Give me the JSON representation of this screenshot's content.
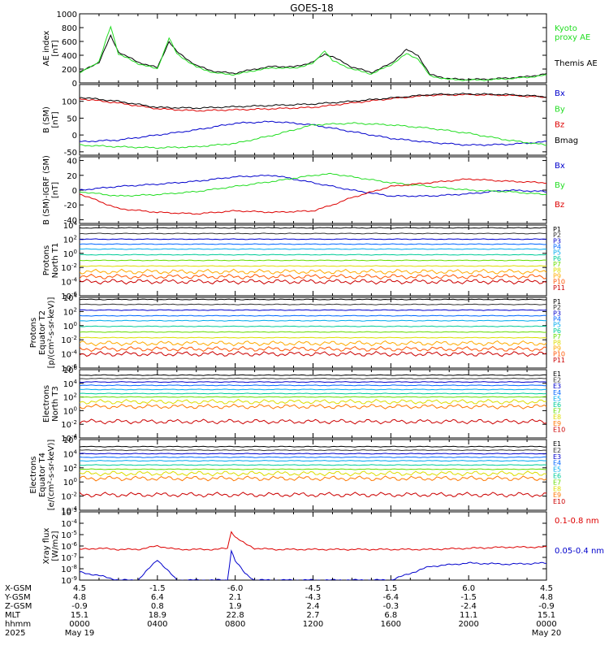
{
  "title": "GOES-18",
  "colors": {
    "black": "#000000",
    "green": "#22dd22",
    "blue": "#0000cc",
    "red": "#dd0000"
  },
  "chart_data": [
    {
      "type": "line",
      "ylabel": [
        "AE index",
        "[nT]"
      ],
      "yticks": [
        "0",
        "200",
        "400",
        "600",
        "800",
        "1000"
      ],
      "ylim": [
        0,
        1000
      ],
      "legend": [
        {
          "name": "Kyoto",
          "color": "#22dd22"
        },
        {
          "name": "proxy AE",
          "color": "#22dd22"
        },
        {
          "name": "Themis AE",
          "color": "#000000"
        }
      ],
      "x_hours": [
        0,
        1,
        1.6,
        2,
        3,
        4,
        4.6,
        5,
        6,
        7,
        8,
        9,
        10,
        11,
        12,
        12.6,
        13,
        14,
        15,
        16,
        16.8,
        17.4,
        18,
        19,
        20,
        21,
        22,
        23,
        24
      ],
      "series": [
        {
          "name": "Themis AE",
          "color": "#000000",
          "values": [
            150,
            300,
            680,
            450,
            300,
            220,
            600,
            450,
            250,
            160,
            140,
            200,
            240,
            230,
            300,
            420,
            380,
            230,
            150,
            280,
            480,
            400,
            120,
            60,
            50,
            55,
            70,
            90,
            130
          ]
        },
        {
          "name": "Kyoto",
          "color": "#22dd22",
          "values": [
            140,
            310,
            820,
            420,
            280,
            200,
            650,
            420,
            230,
            140,
            120,
            180,
            220,
            210,
            280,
            470,
            320,
            200,
            130,
            260,
            420,
            350,
            100,
            50,
            40,
            45,
            60,
            80,
            110
          ]
        }
      ]
    },
    {
      "type": "line",
      "ylabel": [
        "B (SM)",
        "[nT]"
      ],
      "yticks": [
        "-50",
        "0",
        "50",
        "100"
      ],
      "ylim": [
        -60,
        150
      ],
      "legend": [
        {
          "name": "Bx",
          "color": "#0000cc"
        },
        {
          "name": "By",
          "color": "#22dd22"
        },
        {
          "name": "Bz",
          "color": "#dd0000"
        },
        {
          "name": "Bmag",
          "color": "#000000"
        }
      ],
      "x_hours": [
        0,
        2,
        4,
        6,
        8,
        10,
        12,
        14,
        16,
        18,
        20,
        22,
        24
      ],
      "series": [
        {
          "name": "Bx",
          "color": "#0000cc",
          "values": [
            -20,
            -15,
            0,
            15,
            35,
            40,
            30,
            10,
            -10,
            -22,
            -30,
            -28,
            -20
          ]
        },
        {
          "name": "By",
          "color": "#22dd22",
          "values": [
            -30,
            -35,
            -38,
            -35,
            -25,
            0,
            30,
            35,
            30,
            20,
            5,
            -15,
            -30
          ]
        },
        {
          "name": "Bz",
          "color": "#dd0000",
          "values": [
            108,
            95,
            78,
            72,
            75,
            78,
            82,
            95,
            108,
            118,
            120,
            118,
            112
          ]
        },
        {
          "name": "Bmag",
          "color": "#000000",
          "values": [
            112,
            100,
            82,
            80,
            84,
            88,
            92,
            100,
            110,
            120,
            122,
            120,
            114
          ]
        }
      ]
    },
    {
      "type": "line",
      "ylabel": [
        "B (SM)-IGRF (SM)",
        "[nT]"
      ],
      "yticks": [
        "-40",
        "-20",
        "0",
        "20",
        "40"
      ],
      "ylim": [
        -45,
        45
      ],
      "legend": [
        {
          "name": "Bx",
          "color": "#0000cc"
        },
        {
          "name": "By",
          "color": "#22dd22"
        },
        {
          "name": "Bz",
          "color": "#dd0000"
        }
      ],
      "x_hours": [
        0,
        2,
        4,
        6,
        8,
        10,
        12,
        13,
        14,
        16,
        18,
        20,
        22,
        24
      ],
      "series": [
        {
          "name": "Bx",
          "color": "#0000cc",
          "values": [
            0,
            5,
            8,
            12,
            18,
            20,
            10,
            5,
            0,
            -8,
            -8,
            -5,
            0,
            -2
          ]
        },
        {
          "name": "By",
          "color": "#22dd22",
          "values": [
            -2,
            -8,
            -6,
            -2,
            5,
            12,
            20,
            22,
            18,
            10,
            5,
            0,
            -2,
            -6
          ]
        },
        {
          "name": "Bz",
          "color": "#dd0000",
          "values": [
            -5,
            -25,
            -30,
            -32,
            -28,
            -30,
            -28,
            -20,
            -10,
            5,
            10,
            15,
            12,
            10
          ]
        }
      ]
    },
    {
      "type": "line",
      "log": true,
      "ylabel": [
        "Protons",
        "North T1"
      ],
      "yticks": [
        "10^4",
        "10^2",
        "10^0",
        "10^-2",
        "10^-4",
        "10^-6"
      ],
      "ylim_exp": [
        -6,
        4
      ],
      "channels": [
        {
          "name": "P1",
          "color": "#000000",
          "level": 3.6
        },
        {
          "name": "P2",
          "color": "#333333",
          "level": 2.8
        },
        {
          "name": "P3",
          "color": "#0000cc",
          "level": 2.0
        },
        {
          "name": "P4",
          "color": "#0066ff",
          "level": 1.3
        },
        {
          "name": "P5",
          "color": "#00aaee",
          "level": 0.6
        },
        {
          "name": "P6",
          "color": "#00cc99",
          "level": -0.2
        },
        {
          "name": "P7",
          "color": "#66dd00",
          "level": -1.0
        },
        {
          "name": "P8",
          "color": "#dddd00",
          "level": -1.8
        },
        {
          "name": "P9",
          "color": "#ffaa00",
          "level": -2.6
        },
        {
          "name": "P10",
          "color": "#ff5500",
          "level": -3.3
        },
        {
          "name": "P11",
          "color": "#cc0000",
          "level": -4.0
        }
      ]
    },
    {
      "type": "line",
      "log": true,
      "ylabel": [
        "Protons",
        "Equator T2",
        "[p/(cm²-s-sr-keV)]"
      ],
      "yticks": [
        "10^4",
        "10^2",
        "10^0",
        "10^-2",
        "10^-4",
        "10^-6"
      ],
      "ylim_exp": [
        -6,
        4
      ],
      "channels": [
        {
          "name": "P1",
          "color": "#000000",
          "level": 3.7
        },
        {
          "name": "P2",
          "color": "#333333",
          "level": 3.0
        },
        {
          "name": "P3",
          "color": "#0000cc",
          "level": 2.2
        },
        {
          "name": "P4",
          "color": "#0066ff",
          "level": 1.4
        },
        {
          "name": "P5",
          "color": "#00aaee",
          "level": 0.7
        },
        {
          "name": "P6",
          "color": "#00cc99",
          "level": -0.1
        },
        {
          "name": "P7",
          "color": "#66dd00",
          "level": -0.9
        },
        {
          "name": "P8",
          "color": "#dddd00",
          "level": -1.7
        },
        {
          "name": "P9",
          "color": "#ffaa00",
          "level": -2.5
        },
        {
          "name": "P10",
          "color": "#ff5500",
          "level": -3.3
        },
        {
          "name": "P11",
          "color": "#cc0000",
          "level": -4.0
        }
      ]
    },
    {
      "type": "line",
      "log": true,
      "ylabel": [
        "Electrons",
        "North T3"
      ],
      "yticks": [
        "10^6",
        "10^4",
        "10^2",
        "10^0",
        "10^-2",
        "10^-4"
      ],
      "ylim_exp": [
        -4,
        6
      ],
      "channels": [
        {
          "name": "E1",
          "color": "#000000",
          "level": 5.2
        },
        {
          "name": "E2",
          "color": "#333333",
          "level": 4.7
        },
        {
          "name": "E3",
          "color": "#0000cc",
          "level": 4.2
        },
        {
          "name": "E4",
          "color": "#0066ff",
          "level": 3.7
        },
        {
          "name": "E5",
          "color": "#00aaee",
          "level": 3.1
        },
        {
          "name": "E6",
          "color": "#00cc99",
          "level": 2.5
        },
        {
          "name": "E7",
          "color": "#66dd00",
          "level": 2.0
        },
        {
          "name": "E8",
          "color": "#dddd00",
          "level": 1.3
        },
        {
          "name": "E9",
          "color": "#ff7700",
          "level": 0.6
        },
        {
          "name": "E10",
          "color": "#cc0000",
          "level": -1.6
        }
      ]
    },
    {
      "type": "line",
      "log": true,
      "ylabel": [
        "Electrons",
        "Equator T4",
        "[e/(cm²-s-sr-keV)]"
      ],
      "yticks": [
        "10^6",
        "10^4",
        "10^2",
        "10^0",
        "10^-2",
        "10^-4"
      ],
      "ylim_exp": [
        -4,
        6
      ],
      "channels": [
        {
          "name": "E1",
          "color": "#000000",
          "level": 5.0
        },
        {
          "name": "E2",
          "color": "#333333",
          "level": 4.5
        },
        {
          "name": "E3",
          "color": "#0000cc",
          "level": 4.0
        },
        {
          "name": "E4",
          "color": "#0066ff",
          "level": 3.5
        },
        {
          "name": "E5",
          "color": "#00aaee",
          "level": 3.0
        },
        {
          "name": "E6",
          "color": "#00cc99",
          "level": 2.4
        },
        {
          "name": "E7",
          "color": "#66dd00",
          "level": 1.8
        },
        {
          "name": "E8",
          "color": "#dddd00",
          "level": 1.2
        },
        {
          "name": "E9",
          "color": "#ff7700",
          "level": 0.5
        },
        {
          "name": "E10",
          "color": "#cc0000",
          "level": -1.8
        }
      ]
    },
    {
      "type": "line",
      "log": true,
      "ylabel": [
        "Xray flux",
        "[W/m2]"
      ],
      "yticks": [
        "10^-3",
        "10^-4",
        "10^-5",
        "10^-6",
        "10^-7",
        "10^-8",
        "10^-9"
      ],
      "ylim_exp": [
        -9,
        -3
      ],
      "legend": [
        {
          "name": "0.1-0.8 nm",
          "color": "#dd0000"
        },
        {
          "name": "0.05-0.4 nm",
          "color": "#0000cc"
        }
      ],
      "x_hours": [
        0,
        1,
        2,
        3,
        4,
        5,
        6,
        7,
        7.6,
        7.8,
        8,
        8.5,
        9,
        10,
        11,
        12,
        14,
        16,
        18,
        20,
        22,
        24
      ],
      "series": [
        {
          "name": "0.1-0.8 nm",
          "color": "#dd0000",
          "values": [
            -6.3,
            -6.2,
            -6.3,
            -6.3,
            -6.0,
            -6.3,
            -6.3,
            -6.3,
            -6.2,
            -4.7,
            -5.2,
            -5.8,
            -6.2,
            -6.3,
            -6.3,
            -6.3,
            -6.3,
            -6.3,
            -6.3,
            -6.2,
            -6.1,
            -6.1
          ]
        },
        {
          "name": "0.05-0.4 nm",
          "color": "#0000cc",
          "values": [
            -8.3,
            -8.6,
            -9,
            -9,
            -7.2,
            -9,
            -9,
            -9,
            -9,
            -6.4,
            -7.3,
            -8.4,
            -9,
            -9,
            -9,
            -9,
            -9,
            -9,
            -7.8,
            -7.5,
            -7.6,
            -7.5
          ]
        }
      ]
    }
  ],
  "xaxis": {
    "row_labels": [
      "X-GSM",
      "Y-GSM",
      "Z-GSM",
      "MLT",
      "hhmm",
      "2025"
    ],
    "columns": [
      {
        "hours": 0,
        "values": [
          "4.5",
          "4.8",
          "-0.9",
          "15.1",
          "0000",
          "May 19"
        ]
      },
      {
        "hours": 4,
        "values": [
          "-1.5",
          "6.4",
          "0.8",
          "18.9",
          "0400",
          ""
        ]
      },
      {
        "hours": 8,
        "values": [
          "-6.0",
          "2.1",
          "1.9",
          "22.8",
          "0800",
          ""
        ]
      },
      {
        "hours": 12,
        "values": [
          "-4.5",
          "-4.3",
          "2.4",
          "2.7",
          "1200",
          ""
        ]
      },
      {
        "hours": 16,
        "values": [
          "1.5",
          "-6.4",
          "-0.3",
          "6.8",
          "1600",
          ""
        ]
      },
      {
        "hours": 20,
        "values": [
          "6.0",
          "-1.5",
          "-2.4",
          "11.1",
          "2000",
          ""
        ]
      },
      {
        "hours": 24,
        "values": [
          "4.5",
          "4.8",
          "-0.9",
          "15.1",
          "0000",
          "May 20"
        ]
      }
    ]
  }
}
